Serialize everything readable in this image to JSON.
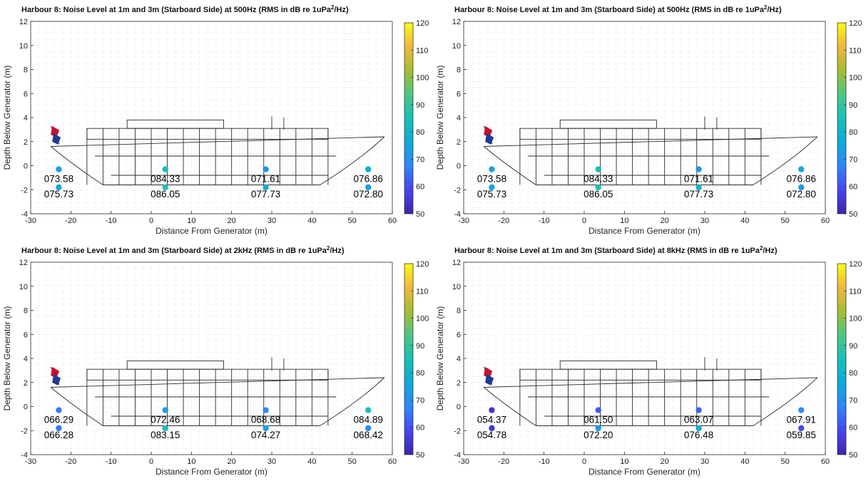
{
  "colorbar": {
    "min": 50,
    "max": 120,
    "ticks": [
      50,
      60,
      70,
      80,
      90,
      100,
      110,
      120
    ],
    "colormap": "parula"
  },
  "colors": {
    "grid": "#e6e6e6",
    "axis": "#262626",
    "ship_line": "#2b2b2b",
    "flag_red": "#c8102e",
    "flag_blue": "#1f3a93"
  },
  "chart_data": [
    {
      "type": "scatter",
      "title_main": "Harbour 8: Noise Level at 1m and 3m (Starboard Side) at 500Hz (RMS in dB re 1uPa",
      "title_sup": "2",
      "title_end": "/Hz)",
      "xlabel": "Distance From Generator (m)",
      "ylabel": "Depth Below Generator (m)",
      "xlim": [
        -30,
        60
      ],
      "ylim": [
        -4,
        12
      ],
      "xticks": [
        -30,
        -20,
        -10,
        0,
        10,
        20,
        30,
        40,
        50,
        60
      ],
      "yticks": [
        -4,
        -2,
        0,
        2,
        4,
        6,
        8,
        10,
        12
      ],
      "grid": true,
      "points": [
        {
          "x": -23,
          "y": -0.3,
          "value": 73.58,
          "label": "073.58"
        },
        {
          "x": 3.5,
          "y": -0.3,
          "value": 84.33,
          "label": "084.33"
        },
        {
          "x": 28.5,
          "y": -0.3,
          "value": 71.61,
          "label": "071.61"
        },
        {
          "x": 54,
          "y": -0.3,
          "value": 76.86,
          "label": "076.86"
        },
        {
          "x": -23,
          "y": -1.8,
          "value": 75.73,
          "label": "075.73"
        },
        {
          "x": 3.5,
          "y": -1.8,
          "value": 86.05,
          "label": "086.05"
        },
        {
          "x": 28.5,
          "y": -1.8,
          "value": 77.73,
          "label": "077.73"
        },
        {
          "x": 54,
          "y": -1.8,
          "value": 72.8,
          "label": "072.80"
        }
      ]
    },
    {
      "type": "scatter",
      "title_main": "Harbour 8: Noise Level at 1m and 3m (Starboard Side) at 500Hz (RMS in dB re 1uPa",
      "title_sup": "2",
      "title_end": "/Hz)",
      "xlabel": "Distance From Generator (m)",
      "ylabel": "Depth Below Generator (m)",
      "xlim": [
        -30,
        60
      ],
      "ylim": [
        -4,
        12
      ],
      "xticks": [
        -30,
        -20,
        -10,
        0,
        10,
        20,
        30,
        40,
        50,
        60
      ],
      "yticks": [
        -4,
        -2,
        0,
        2,
        4,
        6,
        8,
        10,
        12
      ],
      "grid": true,
      "points": [
        {
          "x": -23,
          "y": -0.3,
          "value": 73.58,
          "label": "073.58"
        },
        {
          "x": 3.5,
          "y": -0.3,
          "value": 84.33,
          "label": "084.33"
        },
        {
          "x": 28.5,
          "y": -0.3,
          "value": 71.61,
          "label": "071.61"
        },
        {
          "x": 54,
          "y": -0.3,
          "value": 76.86,
          "label": "076.86"
        },
        {
          "x": -23,
          "y": -1.8,
          "value": 75.73,
          "label": "075.73"
        },
        {
          "x": 3.5,
          "y": -1.8,
          "value": 86.05,
          "label": "086.05"
        },
        {
          "x": 28.5,
          "y": -1.8,
          "value": 77.73,
          "label": "077.73"
        },
        {
          "x": 54,
          "y": -1.8,
          "value": 72.8,
          "label": "072.80"
        }
      ]
    },
    {
      "type": "scatter",
      "title_main": "Harbour 8: Noise Level at 1m and 3m (Starboard Side) at 2kHz (RMS in dB re 1uPa",
      "title_sup": "2",
      "title_end": "/Hz)",
      "xlabel": "Distance From Generator (m)",
      "ylabel": "Depth Below Generator (m)",
      "xlim": [
        -30,
        60
      ],
      "ylim": [
        -4,
        12
      ],
      "xticks": [
        -30,
        -20,
        -10,
        0,
        10,
        20,
        30,
        40,
        50,
        60
      ],
      "yticks": [
        -4,
        -2,
        0,
        2,
        4,
        6,
        8,
        10,
        12
      ],
      "grid": true,
      "points": [
        {
          "x": -23,
          "y": -0.3,
          "value": 66.29,
          "label": "066.29"
        },
        {
          "x": 3.5,
          "y": -0.3,
          "value": 72.46,
          "label": "072.46"
        },
        {
          "x": 28.5,
          "y": -0.3,
          "value": 68.68,
          "label": "068.68"
        },
        {
          "x": 54,
          "y": -0.3,
          "value": 84.89,
          "label": "084.89"
        },
        {
          "x": -23,
          "y": -1.8,
          "value": 66.28,
          "label": "066.28"
        },
        {
          "x": 3.5,
          "y": -1.8,
          "value": 83.15,
          "label": "083.15"
        },
        {
          "x": 28.5,
          "y": -1.8,
          "value": 74.27,
          "label": "074.27"
        },
        {
          "x": 54,
          "y": -1.8,
          "value": 68.42,
          "label": "068.42"
        }
      ]
    },
    {
      "type": "scatter",
      "title_main": "Harbour 8: Noise Level at 1m and 3m (Starboard Side) at 8kHz (RMS in dB re 1uPa",
      "title_sup": "2",
      "title_end": "/Hz)",
      "xlabel": "Distance From Generator (m)",
      "ylabel": "Depth Below Generator (m)",
      "xlim": [
        -30,
        60
      ],
      "ylim": [
        -4,
        12
      ],
      "xticks": [
        -30,
        -20,
        -10,
        0,
        10,
        20,
        30,
        40,
        50,
        60
      ],
      "yticks": [
        -4,
        -2,
        0,
        2,
        4,
        6,
        8,
        10,
        12
      ],
      "grid": true,
      "points": [
        {
          "x": -23,
          "y": -0.3,
          "value": 54.37,
          "label": "054.37"
        },
        {
          "x": 3.5,
          "y": -0.3,
          "value": 61.5,
          "label": "061.50"
        },
        {
          "x": 28.5,
          "y": -0.3,
          "value": 63.07,
          "label": "063.07"
        },
        {
          "x": 54,
          "y": -0.3,
          "value": 67.91,
          "label": "067.91"
        },
        {
          "x": -23,
          "y": -1.8,
          "value": 54.78,
          "label": "054.78"
        },
        {
          "x": 3.5,
          "y": -1.8,
          "value": 72.2,
          "label": "072.20"
        },
        {
          "x": 28.5,
          "y": -1.8,
          "value": 76.48,
          "label": "076.48"
        },
        {
          "x": 54,
          "y": -1.8,
          "value": 59.85,
          "label": "059.85"
        }
      ]
    }
  ]
}
